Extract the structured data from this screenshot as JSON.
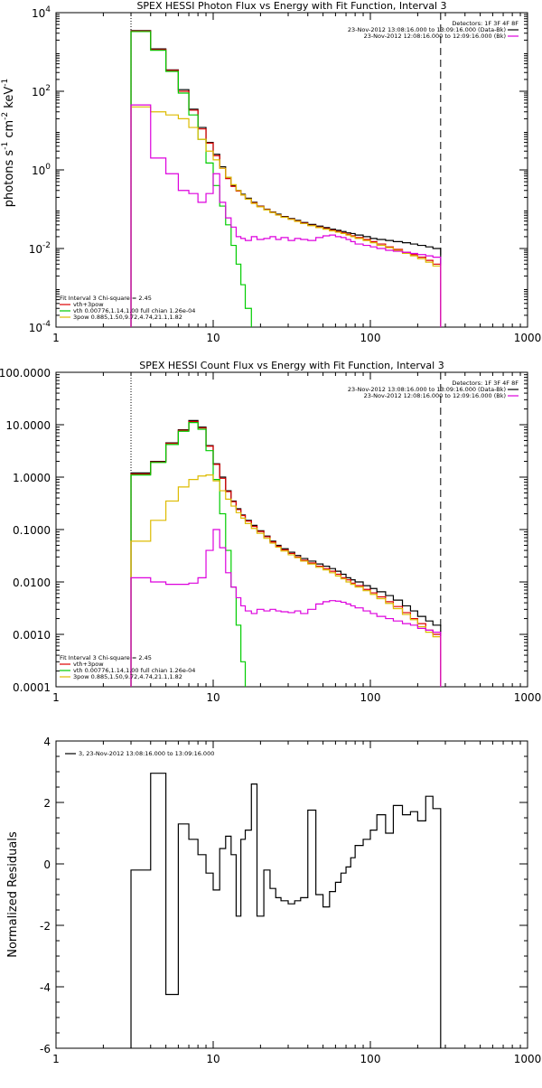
{
  "chart_data": [
    {
      "type": "line",
      "step": true,
      "title": "SPEX HESSI Photon Flux vs Energy with Fit Function, Interval 3",
      "ylabel_parts": [
        "photons s",
        "-1",
        " cm",
        "-2",
        " keV",
        "-1"
      ],
      "xscale": "log",
      "yscale": "log",
      "xlim": [
        1,
        1000
      ],
      "ylim": [
        0.0001,
        10000
      ],
      "xticks": [
        1,
        10,
        100,
        1000
      ],
      "xtick_labels": [
        "1",
        "10",
        "100",
        "1000"
      ],
      "yticks": [
        0.0001,
        0.01,
        1,
        100,
        10000
      ],
      "ytick_labels": [
        [
          "10",
          "-4"
        ],
        [
          "10",
          "-2"
        ],
        [
          "10",
          "0"
        ],
        [
          "10",
          "2"
        ],
        [
          "10",
          "4"
        ]
      ],
      "legend_tr": {
        "header": "Detectors: 1F 3F 4F 8F",
        "entries": [
          {
            "text": "23-Nov-2012 13:08:16.000 to 13:09:16.000 (Data-Bk)",
            "color": "#000000"
          },
          {
            "text": "23-Nov-2012 12:08:16.000 to 12:09:16.000 (Bk)",
            "color": "#dd00dd"
          }
        ]
      },
      "legend_bl": {
        "header": "Fit Interval 3   Chi-square = 2.45",
        "entries": [
          {
            "text": "vth+3pow",
            "color": "#dd0000"
          },
          {
            "text": "vth 0.00776,1.14,1.00  full chian 1.26e-04",
            "color": "#00cc00"
          },
          {
            "text": "3pow 0.885,1.50,9.72,4.74,21.1,1.82",
            "color": "#ddbb00"
          }
        ]
      },
      "vlines": [
        {
          "x": 3.0,
          "style": "dotted"
        },
        {
          "x": 280,
          "style": "dashed"
        }
      ],
      "x_edges": [
        3.0,
        4.0,
        5.0,
        6.0,
        7.0,
        8.0,
        9.0,
        10.0,
        11.0,
        12.0,
        13.0,
        14.0,
        15.0,
        16.0,
        17.5,
        19.0,
        21.0,
        23.0,
        25.0,
        27.0,
        30.0,
        33.0,
        36.0,
        40.0,
        45.0,
        50.0,
        55.0,
        60.0,
        65.0,
        70.0,
        75.0,
        80.0,
        90.0,
        100.0,
        110.0,
        125.0,
        140.0,
        160.0,
        180.0,
        200.0,
        225.0,
        250.0,
        280.0
      ],
      "series": [
        {
          "color": "#000000",
          "values": [
            3500,
            1200,
            350,
            110,
            35,
            12,
            5,
            2.5,
            1.2,
            0.65,
            0.4,
            0.3,
            0.24,
            0.19,
            0.15,
            0.12,
            0.1,
            0.085,
            0.075,
            0.065,
            0.058,
            0.052,
            0.046,
            0.041,
            0.037,
            0.034,
            0.031,
            0.029,
            0.027,
            0.025,
            0.024,
            0.022,
            0.02,
            0.018,
            0.017,
            0.016,
            0.015,
            0.014,
            0.013,
            0.012,
            0.011,
            0.01
          ]
        },
        {
          "color": "#dd0000",
          "values": [
            3400,
            1150,
            340,
            100,
            33,
            11,
            4.8,
            2.3,
            1.1,
            0.6,
            0.38,
            0.29,
            0.23,
            0.18,
            0.145,
            0.118,
            0.098,
            0.083,
            0.072,
            0.063,
            0.056,
            0.05,
            0.044,
            0.039,
            0.035,
            0.032,
            0.029,
            0.027,
            0.025,
            0.023,
            0.021,
            0.019,
            0.017,
            0.015,
            0.013,
            0.011,
            0.0095,
            0.008,
            0.007,
            0.006,
            0.005,
            0.004
          ]
        },
        {
          "color": "#00cc00",
          "values": [
            3300,
            1100,
            320,
            90,
            25,
            6,
            1.5,
            0.4,
            0.12,
            0.04,
            0.012,
            0.004,
            0.0012,
            0.0003,
            8e-05,
            null,
            null,
            null,
            null,
            null,
            null,
            null,
            null,
            null,
            null,
            null,
            null,
            null,
            null,
            null,
            null,
            null,
            null,
            null,
            null,
            null,
            null,
            null,
            null,
            null,
            null,
            null
          ]
        },
        {
          "color": "#ddbb00",
          "values": [
            40,
            30,
            25,
            20,
            12,
            6,
            3,
            1.8,
            1.1,
            0.65,
            0.42,
            0.3,
            0.23,
            0.18,
            0.14,
            0.115,
            0.096,
            0.082,
            0.071,
            0.062,
            0.055,
            0.049,
            0.043,
            0.038,
            0.034,
            0.031,
            0.028,
            0.026,
            0.024,
            0.022,
            0.02,
            0.018,
            0.016,
            0.014,
            0.012,
            0.0105,
            0.009,
            0.0075,
            0.0065,
            0.0055,
            0.0045,
            0.0036
          ]
        },
        {
          "color": "#dd00dd",
          "values": [
            45,
            2.0,
            0.8,
            0.3,
            0.25,
            0.15,
            0.25,
            0.8,
            0.15,
            0.06,
            0.035,
            0.02,
            0.018,
            0.016,
            0.02,
            0.017,
            0.018,
            0.02,
            0.017,
            0.019,
            0.016,
            0.018,
            0.017,
            0.016,
            0.019,
            0.021,
            0.022,
            0.02,
            0.019,
            0.017,
            0.015,
            0.013,
            0.012,
            0.011,
            0.01,
            0.009,
            0.0085,
            0.008,
            0.0075,
            0.007,
            0.0065,
            0.006
          ]
        }
      ]
    },
    {
      "type": "line",
      "step": true,
      "title": "SPEX HESSI Count Flux vs Energy with Fit Function, Interval 3",
      "xscale": "log",
      "yscale": "log",
      "xlim": [
        1,
        1000
      ],
      "ylim": [
        0.0001,
        100
      ],
      "xticks": [
        1,
        10,
        100,
        1000
      ],
      "xtick_labels": [
        "1",
        "10",
        "100",
        "1000"
      ],
      "yticks": [
        0.0001,
        0.001,
        0.01,
        0.1,
        1,
        10,
        100
      ],
      "ytick_labels": [
        "0.0001",
        "0.0010",
        "0.0100",
        "0.1000",
        "1.0000",
        "10.0000",
        "100.0000"
      ],
      "legend_tr": {
        "header": "Detectors: 1F 3F 4F 8F",
        "entries": [
          {
            "text": "23-Nov-2012 13:08:16.000 to 13:09:16.000 (Data-Bk)",
            "color": "#000000"
          },
          {
            "text": "23-Nov-2012 12:08:16.000 to 12:09:16.000 (Bk)",
            "color": "#dd00dd"
          }
        ]
      },
      "legend_bl": {
        "header": "Fit Interval 3   Chi-square = 2.45",
        "entries": [
          {
            "text": "vth+3pow",
            "color": "#dd0000"
          },
          {
            "text": "vth 0.00776,1.14,1.00  full chian 1.26e-04",
            "color": "#00cc00"
          },
          {
            "text": "3pow 0.885,1.50,9.72,4.74,21.1,1.82",
            "color": "#ddbb00"
          }
        ]
      },
      "vlines": [
        {
          "x": 3.0,
          "style": "dotted"
        },
        {
          "x": 280,
          "style": "dashed"
        }
      ],
      "x_edges": [
        3.0,
        4.0,
        5.0,
        6.0,
        7.0,
        8.0,
        9.0,
        10.0,
        11.0,
        12.0,
        13.0,
        14.0,
        15.0,
        16.0,
        17.5,
        19.0,
        21.0,
        23.0,
        25.0,
        27.0,
        30.0,
        33.0,
        36.0,
        40.0,
        45.0,
        50.0,
        55.0,
        60.0,
        65.0,
        70.0,
        75.0,
        80.0,
        90.0,
        100.0,
        110.0,
        125.0,
        140.0,
        160.0,
        180.0,
        200.0,
        225.0,
        250.0,
        280.0
      ],
      "series": [
        {
          "color": "#000000",
          "values": [
            1.2,
            2.0,
            4.5,
            8.0,
            12.0,
            9.0,
            4.0,
            1.8,
            1.0,
            0.55,
            0.35,
            0.25,
            0.19,
            0.15,
            0.12,
            0.095,
            0.075,
            0.06,
            0.05,
            0.043,
            0.037,
            0.032,
            0.028,
            0.025,
            0.022,
            0.02,
            0.018,
            0.016,
            0.014,
            0.012,
            0.011,
            0.01,
            0.0085,
            0.0075,
            0.0065,
            0.0055,
            0.0045,
            0.0035,
            0.0028,
            0.0022,
            0.0018,
            0.0015
          ]
        },
        {
          "color": "#dd0000",
          "values": [
            1.15,
            1.95,
            4.4,
            7.8,
            11.5,
            8.7,
            3.9,
            1.75,
            0.95,
            0.53,
            0.34,
            0.24,
            0.185,
            0.145,
            0.115,
            0.092,
            0.073,
            0.058,
            0.048,
            0.041,
            0.035,
            0.03,
            0.026,
            0.023,
            0.02,
            0.018,
            0.016,
            0.014,
            0.012,
            0.011,
            0.0095,
            0.0085,
            0.0072,
            0.0062,
            0.0052,
            0.0042,
            0.0034,
            0.0026,
            0.002,
            0.0016,
            0.0012,
            0.001
          ]
        },
        {
          "color": "#00cc00",
          "values": [
            1.1,
            1.9,
            4.2,
            7.5,
            11.0,
            8.2,
            3.2,
            0.9,
            0.2,
            0.04,
            0.008,
            0.0015,
            0.0003,
            8e-05,
            null,
            null,
            null,
            null,
            null,
            null,
            null,
            null,
            null,
            null,
            null,
            null,
            null,
            null,
            null,
            null,
            null,
            null,
            null,
            null,
            null,
            null,
            null,
            null,
            null,
            null,
            null,
            null
          ]
        },
        {
          "color": "#ddbb00",
          "values": [
            0.06,
            0.15,
            0.35,
            0.65,
            0.9,
            1.05,
            1.1,
            0.85,
            0.55,
            0.38,
            0.28,
            0.21,
            0.165,
            0.13,
            0.105,
            0.085,
            0.068,
            0.055,
            0.046,
            0.039,
            0.033,
            0.029,
            0.025,
            0.022,
            0.019,
            0.017,
            0.015,
            0.013,
            0.0115,
            0.01,
            0.009,
            0.008,
            0.0068,
            0.0058,
            0.0048,
            0.0039,
            0.0031,
            0.0024,
            0.0019,
            0.0014,
            0.0011,
            0.0009
          ]
        },
        {
          "color": "#dd00dd",
          "values": [
            0.012,
            0.01,
            0.009,
            0.009,
            0.0095,
            0.012,
            0.04,
            0.1,
            0.045,
            0.015,
            0.008,
            0.005,
            0.0035,
            0.0028,
            0.0025,
            0.003,
            0.0028,
            0.003,
            0.0028,
            0.0027,
            0.0026,
            0.0028,
            0.0025,
            0.003,
            0.0038,
            0.0042,
            0.0044,
            0.0043,
            0.0041,
            0.0038,
            0.0035,
            0.0032,
            0.0028,
            0.0025,
            0.0022,
            0.002,
            0.0018,
            0.0016,
            0.0015,
            0.0013,
            0.0012,
            0.0011
          ]
        }
      ]
    },
    {
      "type": "line",
      "step": true,
      "ylabel": "Normalized Residuals",
      "xscale": "log",
      "yscale": "linear",
      "xlim": [
        1,
        1000
      ],
      "ylim": [
        -6,
        4
      ],
      "xticks": [
        1,
        10,
        100,
        1000
      ],
      "xtick_labels": [
        "1",
        "10",
        "100",
        "1000"
      ],
      "yticks": [
        -6,
        -4,
        -2,
        0,
        2,
        4
      ],
      "ytick_labels": [
        "-6",
        "-4",
        "-2",
        "0",
        "2",
        "4"
      ],
      "legend_tl": {
        "entries": [
          {
            "text": "3, 23-Nov-2012 13:08:16.000 to 13:09:16.000",
            "color": "#000000"
          }
        ]
      },
      "x_edges": [
        3.0,
        4.0,
        5.0,
        6.0,
        7.0,
        8.0,
        9.0,
        10.0,
        11.0,
        12.0,
        13.0,
        14.0,
        15.0,
        16.0,
        17.5,
        19.0,
        21.0,
        23.0,
        25.0,
        27.0,
        30.0,
        33.0,
        36.0,
        40.0,
        45.0,
        50.0,
        55.0,
        60.0,
        65.0,
        70.0,
        75.0,
        80.0,
        90.0,
        100.0,
        110.0,
        125.0,
        140.0,
        160.0,
        180.0,
        200.0,
        225.0,
        250.0,
        280.0
      ],
      "series": [
        {
          "color": "#000000",
          "values": [
            -0.2,
            2.95,
            -4.25,
            1.3,
            0.8,
            0.3,
            -0.3,
            -0.85,
            0.5,
            0.9,
            0.3,
            -1.7,
            0.8,
            1.1,
            2.6,
            -1.7,
            -0.2,
            -0.8,
            -1.1,
            -1.2,
            -1.3,
            -1.2,
            -1.1,
            1.75,
            -1.0,
            -1.4,
            -0.9,
            -0.6,
            -0.3,
            -0.1,
            0.2,
            0.6,
            0.8,
            1.1,
            1.6,
            1.0,
            1.9,
            1.6,
            1.7,
            1.4,
            2.2,
            1.8
          ]
        }
      ]
    }
  ]
}
